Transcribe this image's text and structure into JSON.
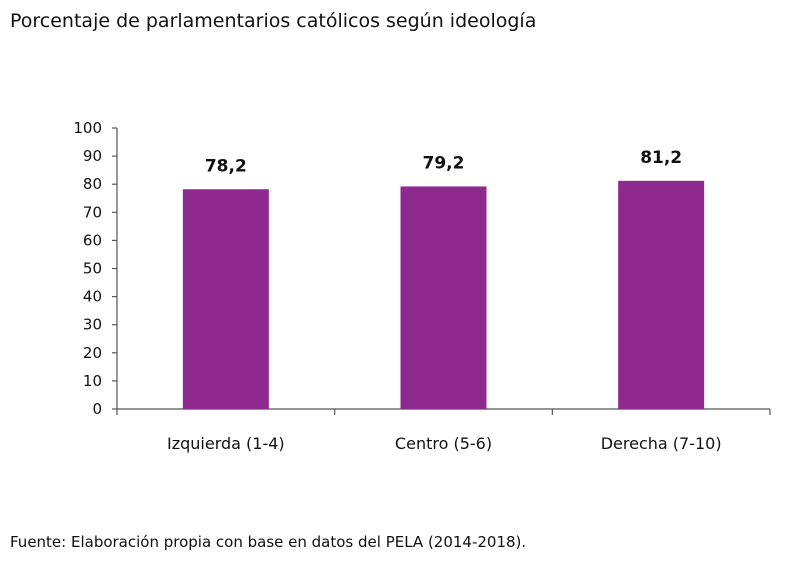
{
  "chart_data": {
    "type": "bar",
    "title": "Porcentaje de parlamentarios católicos según ideología",
    "categories": [
      "Izquierda (1-4)",
      "Centro (5-6)",
      "Derecha (7-10)"
    ],
    "values": [
      78.2,
      79.2,
      81.2
    ],
    "value_labels": [
      "78,2",
      "79,2",
      "81,2"
    ],
    "ylim": [
      0,
      100
    ],
    "yticks": [
      0,
      10,
      20,
      30,
      40,
      50,
      60,
      70,
      80,
      90,
      100
    ],
    "xlabel": "",
    "ylabel": "",
    "grid": false,
    "legend": "none",
    "bar_color": "#8e2a8e"
  },
  "source": "Fuente: Elaboración propia con base en datos del PELA (2014-2018)."
}
